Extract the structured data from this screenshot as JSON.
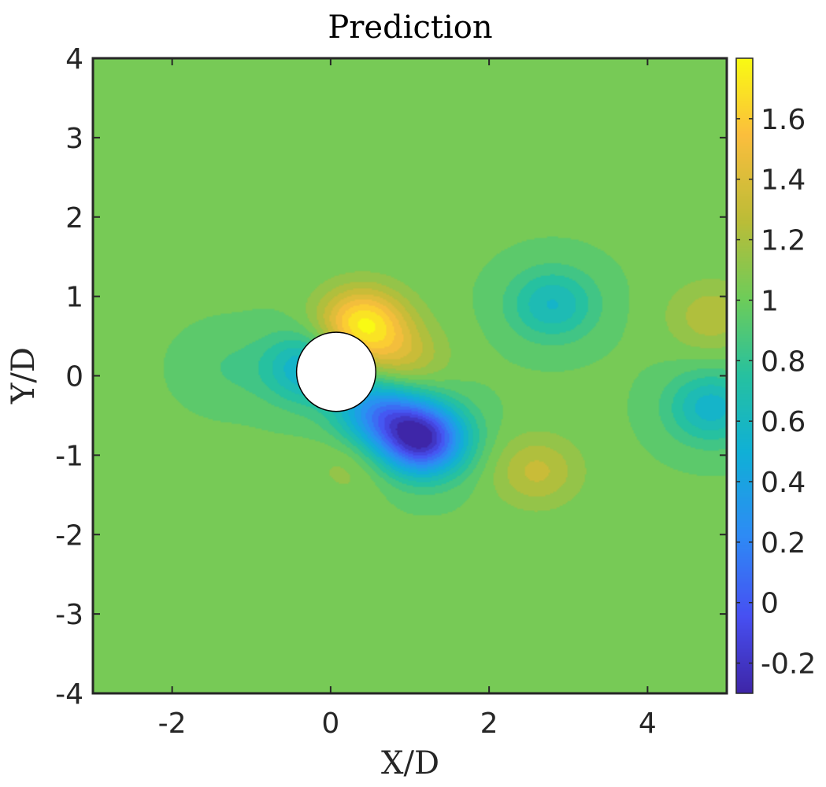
{
  "chart_data": {
    "type": "heatmap",
    "title": "Prediction",
    "xlabel": "X/D",
    "ylabel": "Y/D",
    "xlim": [
      -3,
      5
    ],
    "ylim": [
      -4,
      4
    ],
    "x_ticks": [
      -2,
      0,
      2,
      4
    ],
    "y_ticks": [
      -4,
      -3,
      -2,
      -1,
      0,
      1,
      2,
      3,
      4
    ],
    "x_tick_labels": [
      "-2",
      "0",
      "2",
      "4"
    ],
    "y_tick_labels": [
      "-4",
      "-3",
      "-2",
      "-1",
      "0",
      "1",
      "2",
      "3",
      "4"
    ],
    "colorbar": {
      "range": [
        -0.3,
        1.8
      ],
      "ticks": [
        -0.2,
        0,
        0.2,
        0.4,
        0.6,
        0.8,
        1,
        1.2,
        1.4,
        1.6
      ],
      "tick_labels": [
        "-0.2",
        "0",
        "0.2",
        "0.4",
        "0.6",
        "0.8",
        "1",
        "1.2",
        "1.4",
        "1.6"
      ],
      "colormap": "parula"
    },
    "background_value": 1.0,
    "cylinder": {
      "center": [
        0.07,
        0.05
      ],
      "diameter": 1.0
    },
    "features": [
      {
        "x": 0.4,
        "y": 0.65,
        "value": 1.75
      },
      {
        "x": 0.9,
        "y": 0.2,
        "value": 1.3
      },
      {
        "x": -0.3,
        "y": 0.1,
        "value": 0.5
      },
      {
        "x": 1.15,
        "y": -0.8,
        "value": -0.25
      },
      {
        "x": 0.6,
        "y": -0.45,
        "value": 0.3
      },
      {
        "x": 2.6,
        "y": -1.2,
        "value": 1.3
      },
      {
        "x": 2.8,
        "y": 0.9,
        "value": 0.6
      },
      {
        "x": 4.8,
        "y": -0.4,
        "value": 0.55
      },
      {
        "x": 4.8,
        "y": 0.75,
        "value": 1.25
      },
      {
        "x": 0.3,
        "y": -1.1,
        "value": 1.15
      },
      {
        "x": -1.3,
        "y": 0.1,
        "value": 0.9
      }
    ]
  }
}
